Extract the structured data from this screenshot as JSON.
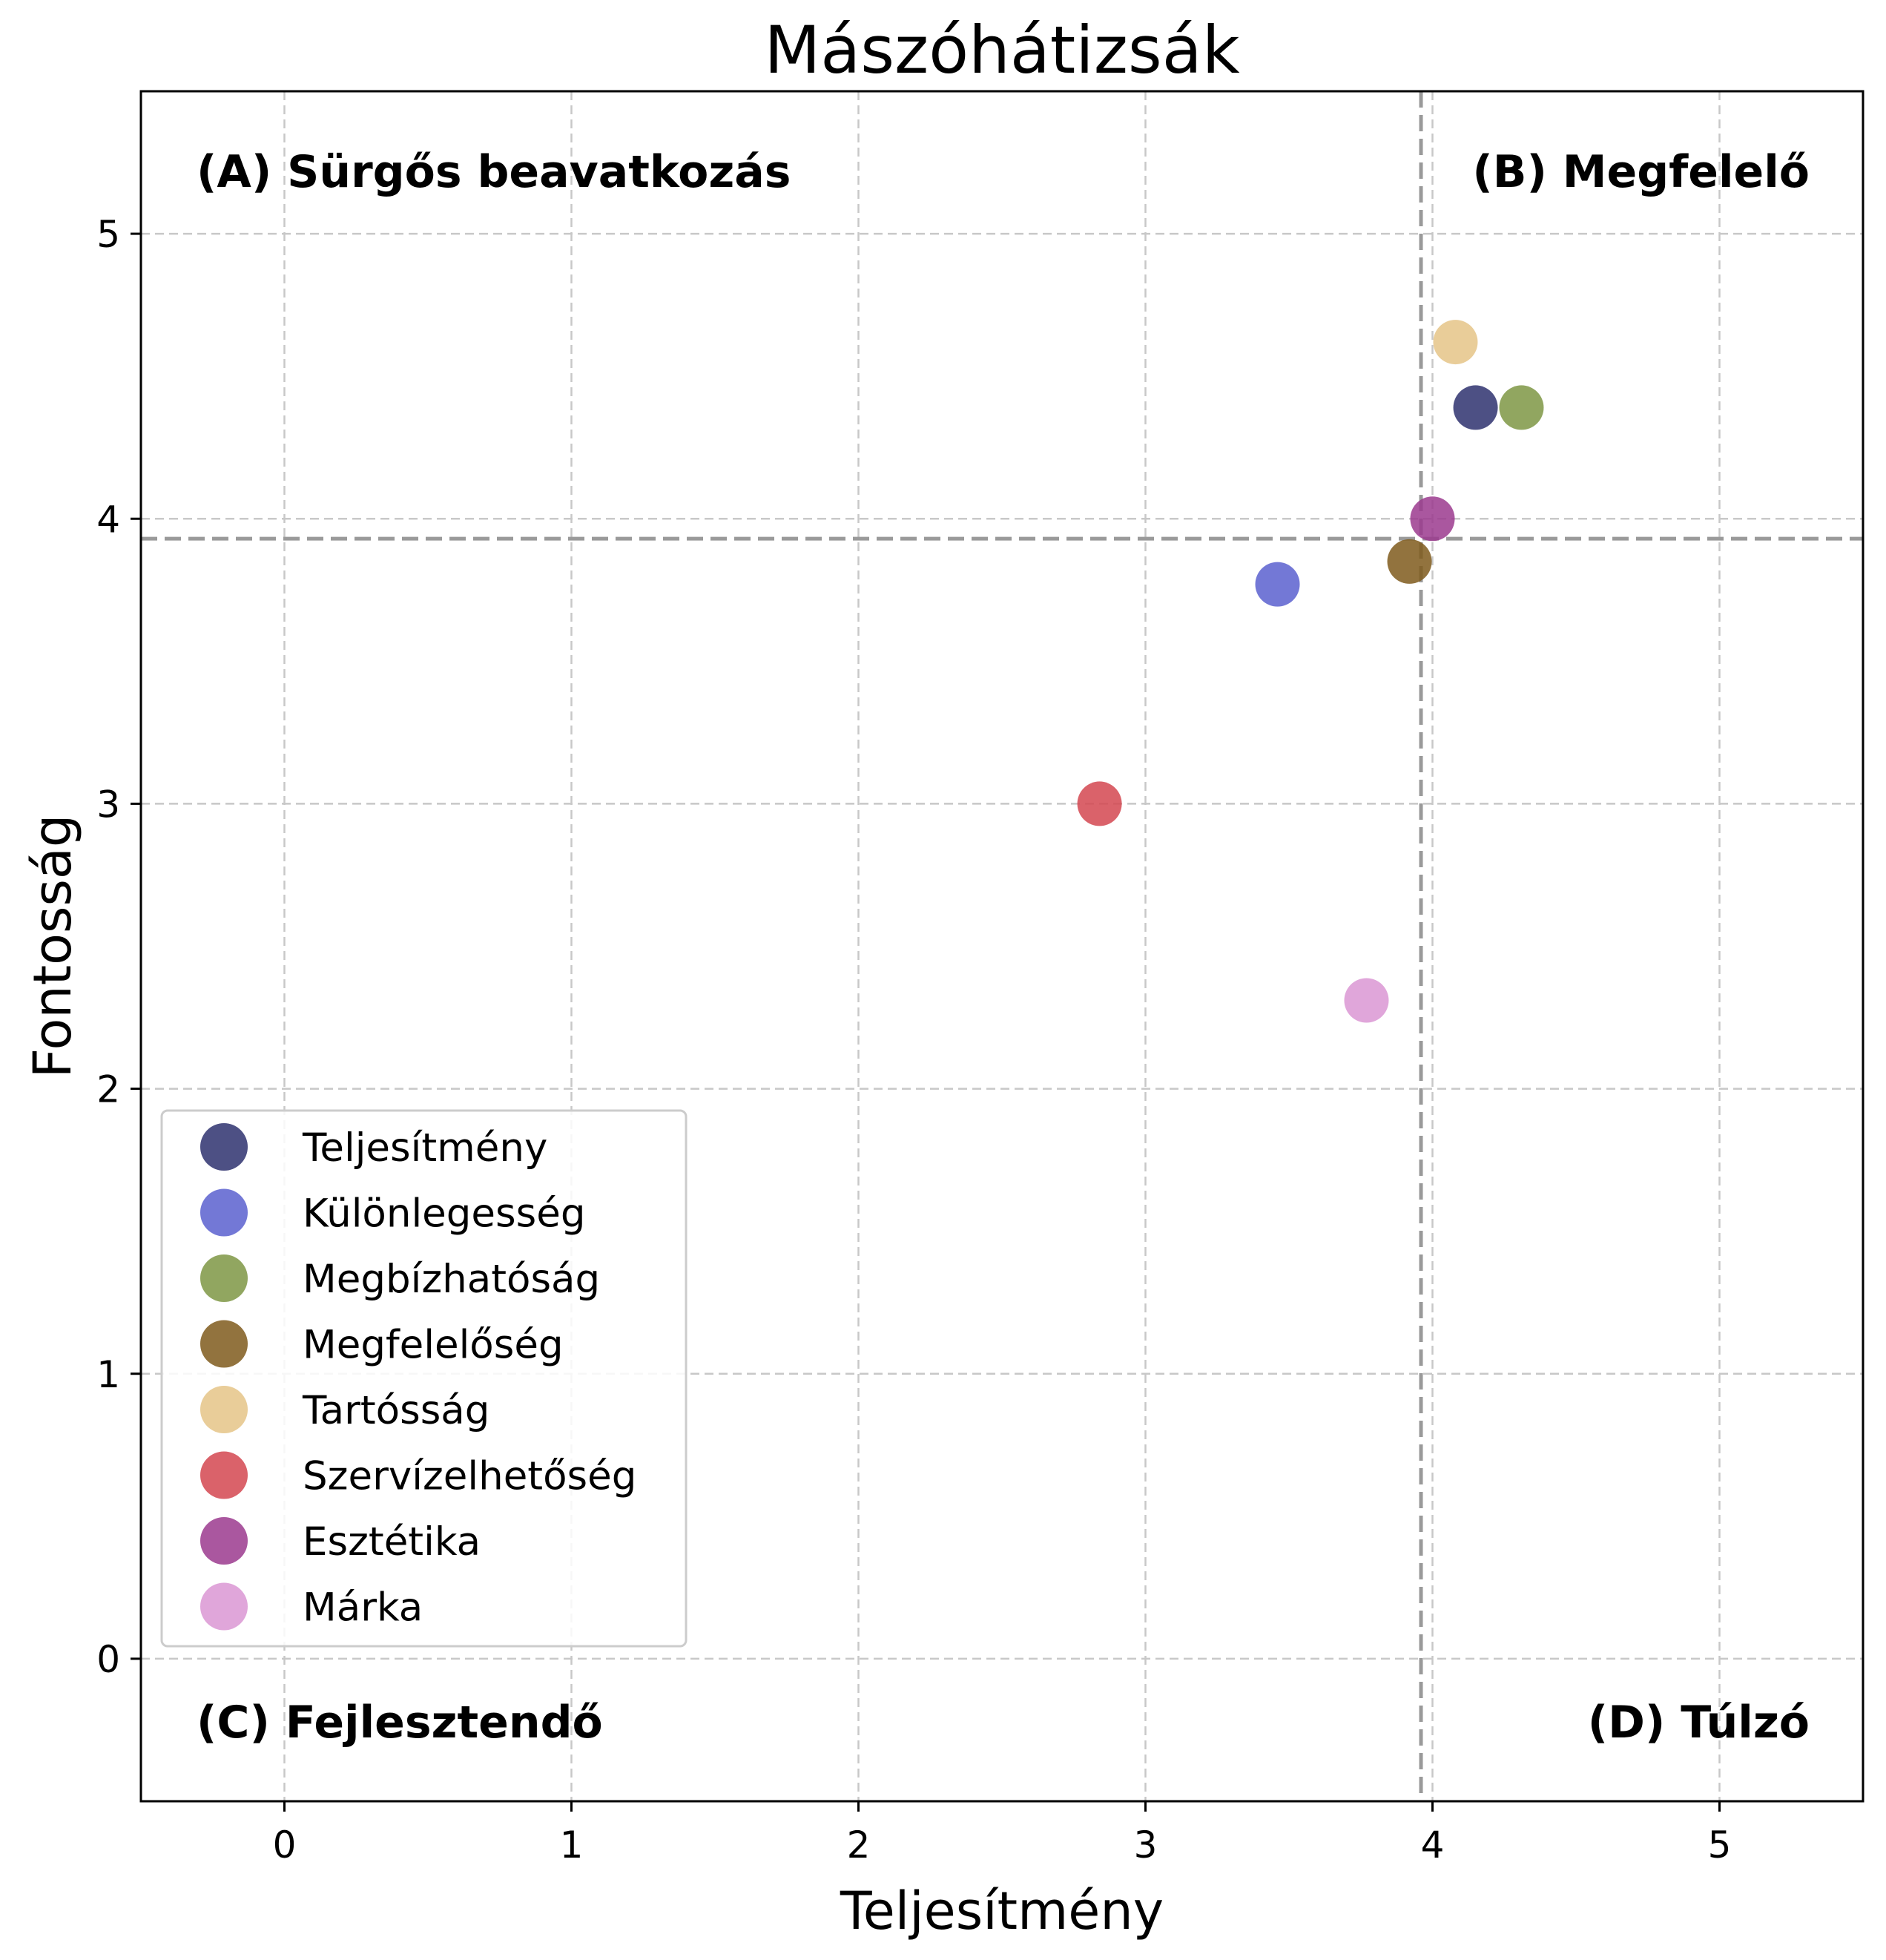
{
  "chart_data": {
    "type": "scatter",
    "title": "Mászóhátizsák",
    "xlabel": "Teljesítmény",
    "ylabel": "Fontosság",
    "xlim": [
      -0.5,
      5.5
    ],
    "ylim": [
      -0.5,
      5.5
    ],
    "xticks": [
      "0",
      "1",
      "2",
      "3",
      "4",
      "5"
    ],
    "yticks": [
      "0",
      "1",
      "2",
      "3",
      "4",
      "5"
    ],
    "grid": true,
    "legend_position": "lower-left",
    "reference_lines": {
      "x": 3.96,
      "y": 3.93
    },
    "quadrant_labels": {
      "top_left": "(A) Sürgős beavatkozás",
      "top_right": "(B) Megfelelő",
      "bottom_left": "(C) Fejlesztendő",
      "bottom_right": "(D) Túlzó"
    },
    "series": [
      {
        "name": "Teljesítmény",
        "color": "#2e316e",
        "x": 4.15,
        "y": 4.39
      },
      {
        "name": "Különlegesség",
        "color": "#5b60cf",
        "x": 3.46,
        "y": 3.77
      },
      {
        "name": "Megbízhatóság",
        "color": "#7e9644",
        "x": 4.31,
        "y": 4.39
      },
      {
        "name": "Megfelelőség",
        "color": "#7f5a1c",
        "x": 3.92,
        "y": 3.85
      },
      {
        "name": "Tartósság",
        "color": "#e5c487",
        "x": 4.08,
        "y": 4.62
      },
      {
        "name": "Szervízelhetőség",
        "color": "#d44650",
        "x": 2.84,
        "y": 3.0
      },
      {
        "name": "Esztétika",
        "color": "#9b3a8e",
        "x": 4.0,
        "y": 4.0
      },
      {
        "name": "Márka",
        "color": "#db96d4",
        "x": 3.77,
        "y": 2.31
      }
    ]
  }
}
